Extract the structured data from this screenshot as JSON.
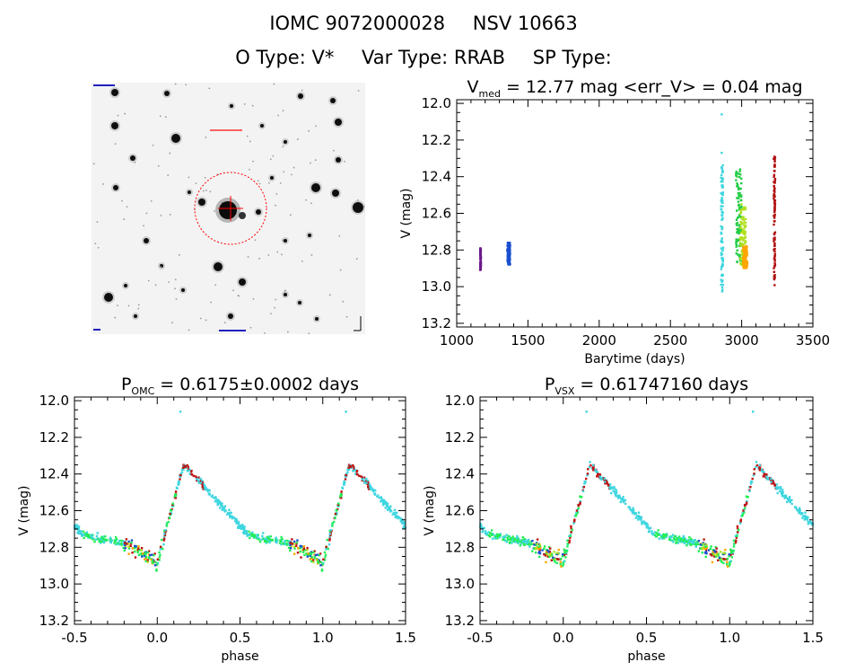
{
  "header": {
    "identifier": "IOMC 9072000028",
    "name": "NSV 10663",
    "object_type": "O Type: V*",
    "var_type": "Var Type: RRAB",
    "sp_type": "SP Type:"
  },
  "finder_chart": {
    "description": "star field image with circled target",
    "target_circle_color": "#ff0000"
  },
  "chart_data": [
    {
      "id": "lightcurve",
      "type": "scatter",
      "title_main": "V",
      "title_sub": "med",
      "title_rest": " = 12.77 mag <err_V> = 0.04 mag",
      "xlabel": "Barytime (days)",
      "ylabel": "V (mag)",
      "xlim": [
        1000,
        3500
      ],
      "ylim": [
        13.22,
        11.98
      ],
      "xticks": [
        1000,
        1500,
        2000,
        2500,
        3000,
        3500
      ],
      "yticks": [
        12.0,
        12.2,
        12.4,
        12.6,
        12.8,
        13.0,
        13.2
      ],
      "ytick_labels": [
        "12.0",
        "12.2",
        "12.4",
        "12.6",
        "12.8",
        "13.0",
        "13.2"
      ],
      "yreversed": true,
      "series": [
        {
          "color": "#6a1a8a",
          "x_range": [
            1165,
            1170
          ],
          "y_range": [
            12.79,
            12.91
          ]
        },
        {
          "color": "#1a4fd0",
          "x_range": [
            1355,
            1375
          ],
          "y_range": [
            12.76,
            12.88
          ]
        },
        {
          "color": "#3fd6e0",
          "x_range": [
            2855,
            2870
          ],
          "y_range": [
            12.33,
            13.05
          ],
          "outliers": [
            [
              2860,
              12.06
            ],
            [
              2860,
              12.27
            ]
          ]
        },
        {
          "color": "#22cc44",
          "x_range": [
            2960,
            3000
          ],
          "y_range": [
            12.36,
            12.88
          ]
        },
        {
          "color": "#b0e020",
          "x_range": [
            2990,
            3030
          ],
          "y_range": [
            12.55,
            12.9
          ]
        },
        {
          "color": "#ffa500",
          "x_range": [
            3010,
            3040
          ],
          "y_range": [
            12.78,
            12.9
          ]
        },
        {
          "color": "#b01010",
          "x_range": [
            3225,
            3235
          ],
          "y_range": [
            12.29,
            13.02
          ]
        }
      ]
    },
    {
      "id": "phase_omc",
      "type": "scatter",
      "title_main": "P",
      "title_sub": "OMC",
      "title_rest": " = 0.6175±0.0002 days",
      "xlabel": "phase",
      "ylabel": "V (mag)",
      "xlim": [
        -0.5,
        1.5
      ],
      "ylim": [
        13.22,
        11.98
      ],
      "xticks": [
        -0.5,
        0.0,
        0.5,
        1.0,
        1.5
      ],
      "xtick_labels": [
        "-0.5",
        "0.0",
        "0.5",
        "1.0",
        "1.5"
      ],
      "yticks": [
        12.0,
        12.2,
        12.4,
        12.6,
        12.8,
        13.0,
        13.2
      ],
      "ytick_labels": [
        "12.0",
        "12.2",
        "12.4",
        "12.6",
        "12.8",
        "13.0",
        "13.2"
      ],
      "yreversed": true,
      "lightcurve_shape": {
        "min_phase": 0.0,
        "min_mag": 12.88,
        "max_phase": 0.16,
        "max_mag": 12.35,
        "flat_mag": 12.78,
        "pre_max_mag": 12.68
      },
      "outliers": [
        [
          0.14,
          12.06
        ],
        [
          1.14,
          12.06
        ]
      ]
    },
    {
      "id": "phase_vsx",
      "type": "scatter",
      "title_main": "P",
      "title_sub": "VSX",
      "title_rest": " = 0.61747160 days",
      "xlabel": "phase",
      "ylabel": "V (mag)",
      "xlim": [
        -0.5,
        1.5
      ],
      "ylim": [
        13.22,
        11.98
      ],
      "xticks": [
        -0.5,
        0.0,
        0.5,
        1.0,
        1.5
      ],
      "xtick_labels": [
        "-0.5",
        "0.0",
        "0.5",
        "1.0",
        "1.5"
      ],
      "yticks": [
        12.0,
        12.2,
        12.4,
        12.6,
        12.8,
        13.0,
        13.2
      ],
      "ytick_labels": [
        "12.0",
        "12.2",
        "12.4",
        "12.6",
        "12.8",
        "13.0",
        "13.2"
      ],
      "yreversed": true,
      "lightcurve_shape": {
        "min_phase": 0.0,
        "min_mag": 12.88,
        "max_phase": 0.16,
        "max_mag": 12.35,
        "flat_mag": 12.78,
        "pre_max_mag": 12.68
      },
      "outliers": [
        [
          0.14,
          12.06
        ],
        [
          1.14,
          12.06
        ]
      ]
    }
  ],
  "colors": {
    "cyan": "#3fd6e0",
    "green": "#22ee55",
    "yellow_green": "#b0e020",
    "orange": "#ffa500",
    "red": "#c01010",
    "blue": "#1a4fd0",
    "purple": "#6a1a8a"
  }
}
